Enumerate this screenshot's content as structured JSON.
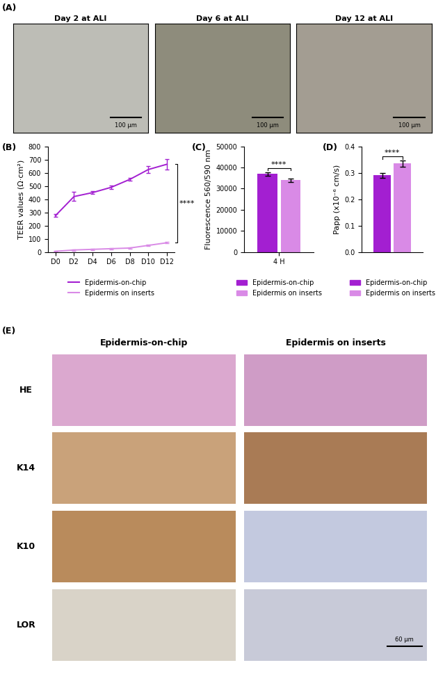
{
  "images": {
    "panel_label": "(A)",
    "panels": [
      {
        "title": "Day 2 at ALI",
        "scale_bar": "100 µm"
      },
      {
        "title": "Day 6 at ALI",
        "scale_bar": "100 µm"
      },
      {
        "title": "Day 12 at ALI",
        "scale_bar": "100 µm"
      }
    ]
  },
  "chart_data": [
    {
      "panel_label": "(B)",
      "type": "line",
      "y_label": "TEER values (Ω·cm²)",
      "categories": [
        "D0",
        "D2",
        "D4",
        "D6",
        "D8",
        "D10",
        "D12"
      ],
      "series": [
        {
          "name": "Epidermis-on-chip",
          "color": "#a31fd1",
          "values": [
            275,
            420,
            450,
            490,
            550,
            625,
            665
          ],
          "errors": [
            10,
            35,
            10,
            15,
            10,
            25,
            40
          ]
        },
        {
          "name": "Epidermis on inserts",
          "color": "#d98ae6",
          "values": [
            5,
            15,
            20,
            25,
            30,
            50,
            70
          ],
          "errors": [
            3,
            4,
            4,
            4,
            5,
            6,
            6
          ]
        }
      ],
      "ylim": [
        0,
        800
      ],
      "yticks": [
        0,
        100,
        200,
        300,
        400,
        500,
        600,
        700,
        800
      ],
      "annotation": "****",
      "legend": "upper center"
    },
    {
      "panel_label": "(C)",
      "type": "bar",
      "y_label": "Fluorescence 560/590 nm",
      "categories": [
        "4 H"
      ],
      "series": [
        {
          "name": "Epidermis-on-chip",
          "color": "#a31fd1",
          "values": [
            37000
          ],
          "errors": [
            800
          ]
        },
        {
          "name": "Epidermis on inserts",
          "color": "#d98ae6",
          "values": [
            34000
          ],
          "errors": [
            800
          ]
        }
      ],
      "ylim": [
        0,
        50000
      ],
      "yticks": [
        0,
        10000,
        20000,
        30000,
        40000,
        50000
      ],
      "annotation": "****",
      "legend": "upper center"
    },
    {
      "panel_label": "(D)",
      "type": "bar",
      "y_label": "Papp (x10⁻⁶ cm/s)",
      "categories": [
        null
      ],
      "series": [
        {
          "name": "Epidermis-on-chip",
          "color": "#a31fd1",
          "values": [
            0.29
          ],
          "errors": [
            0.01
          ]
        },
        {
          "name": "Epidermis on inserts",
          "color": "#d98ae6",
          "values": [
            0.335
          ],
          "errors": [
            0.012
          ]
        }
      ],
      "ylim": [
        0,
        0.4
      ],
      "yticks": [
        0.0,
        0.1,
        0.2,
        0.3,
        0.4
      ],
      "annotation": "****",
      "legend": "upper center"
    }
  ],
  "histology": {
    "panel_label": "(E)",
    "columns": [
      "Epidermis-on-chip",
      "Epidermis on inserts"
    ],
    "rows": [
      "HE",
      "K14",
      "K10",
      "LOR"
    ],
    "scale_bar": "60 µm"
  }
}
